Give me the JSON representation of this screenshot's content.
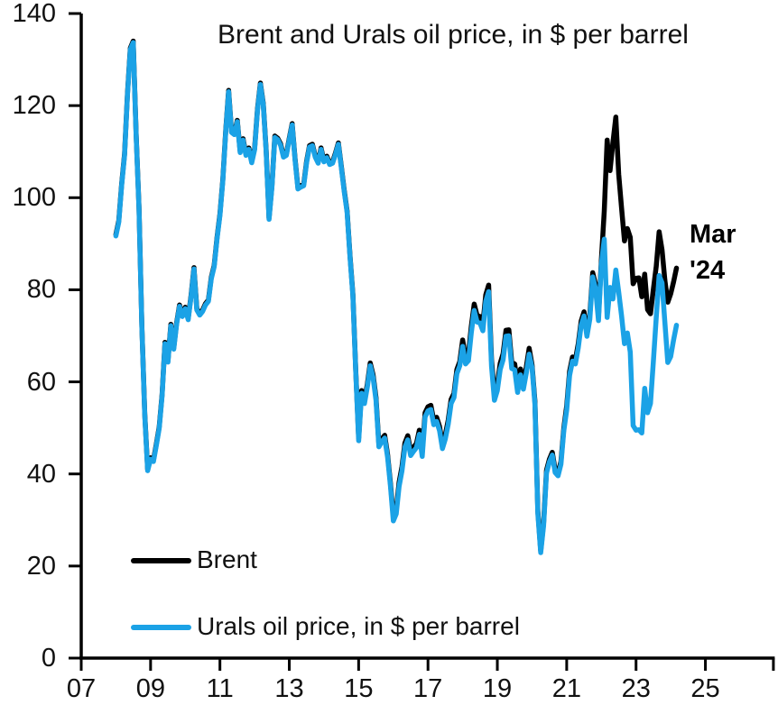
{
  "title": "Brent and Urals oil price, in $ per barrel",
  "annotation": {
    "line1": "Mar",
    "line2": "'24"
  },
  "legend": [
    {
      "label": "Brent",
      "color": "#000000"
    },
    {
      "label": "Urals oil price, in $ per barrel",
      "color": "#1BA2E6"
    }
  ],
  "colors": {
    "brent": "#000000",
    "urals": "#1BA2E6",
    "axis": "#000000",
    "text": "#111111",
    "background": "#ffffff"
  },
  "chart_data": {
    "type": "line",
    "title": "Brent and Urals oil price, in $ per barrel",
    "xlabel": "",
    "ylabel": "",
    "frequency": "monthly",
    "start_year": 2008,
    "end_label": "Mar '24",
    "xlim_years": [
      2007,
      2027
    ],
    "ylim": [
      0,
      140
    ],
    "grid": false,
    "legend_position": "inside-bottom-left",
    "y_ticks": [
      0,
      20,
      40,
      60,
      80,
      100,
      120,
      140
    ],
    "y_tick_labels": [
      "0",
      "20",
      "40",
      "60",
      "80",
      "100",
      "120",
      "140"
    ],
    "x_tick_years": [
      2007,
      2009,
      2011,
      2013,
      2015,
      2017,
      2019,
      2021,
      2023,
      2025
    ],
    "x_tick_labels": [
      "07",
      "09",
      "11",
      "13",
      "15",
      "17",
      "19",
      "21",
      "23",
      "25"
    ],
    "series": [
      {
        "name": "Brent",
        "color": "#000000",
        "values": [
          92,
          95,
          103,
          109.5,
          122.5,
          132.5,
          134,
          114,
          98,
          72,
          53,
          41,
          43.5,
          43,
          46.5,
          50.2,
          57.3,
          68.6,
          64.6,
          72.5,
          67.4,
          72.8,
          76.7,
          74.5,
          76.2,
          73.8,
          78.8,
          84.8,
          75.9,
          74.8,
          75.6,
          77,
          77.8,
          82.7,
          85.3,
          91.4,
          96.5,
          104,
          114.6,
          123.3,
          114.5,
          114,
          116.8,
          110.1,
          112.8,
          109.5,
          110.8,
          107.9,
          110.7,
          119.3,
          124.9,
          120.5,
          110.3,
          95.6,
          102.6,
          113.4,
          112.9,
          111.7,
          109.1,
          109.5,
          112.9,
          116.1,
          108.5,
          102.2,
          102.6,
          102.9,
          107.9,
          111.3,
          111.6,
          109.1,
          107.8,
          110.8,
          108.1,
          109,
          107.5,
          107.8,
          109.7,
          111.9,
          106.8,
          101.6,
          97.1,
          87.4,
          79,
          62.3,
          47.8,
          58.1,
          55.9,
          59.5,
          64.1,
          61.5,
          56.6,
          46.5,
          47.6,
          48.4,
          44.3,
          38,
          30.7,
          32.2,
          38.2,
          41.6,
          46.7,
          48.3,
          44.9,
          45.8,
          46.6,
          49.5,
          44.7,
          53.3,
          54.6,
          54.9,
          51.6,
          52.3,
          50.3,
          46.4,
          48.5,
          51.7,
          56.2,
          57.5,
          62.7,
          64.4,
          69.1,
          65.3,
          66,
          72.1,
          76.9,
          74.4,
          74.2,
          72.5,
          78.9,
          81,
          64.8,
          57.4,
          59.4,
          64,
          66.1,
          71.2,
          71.3,
          64.2,
          63.9,
          59,
          62.8,
          59.7,
          63.2,
          67.3,
          63.7,
          55.7,
          32,
          23.3,
          29.4,
          40.8,
          43.2,
          44.7,
          40.9,
          40.2,
          42.7,
          50,
          54.8,
          62.3,
          65.4,
          64.8,
          68.3,
          73.2,
          75.2,
          70.8,
          74.5,
          83.7,
          81.1,
          74.2,
          86.5,
          97.1,
          112.5,
          105.9,
          112,
          117.5,
          105.1,
          97.7,
          90.6,
          93.3,
          91.4,
          81.3,
          82.5,
          82.6,
          78.5,
          83.4,
          75.7,
          74.8,
          80.1,
          85.1,
          92.6,
          88.7,
          82,
          77.3,
          79.1,
          81.7,
          84.7
        ]
      },
      {
        "name": "Urals oil price, in $ per barrel",
        "color": "#1BA2E6",
        "values": [
          91.7,
          94.7,
          102.7,
          109.2,
          122.2,
          132.2,
          133.7,
          113.7,
          97.7,
          71.7,
          52.7,
          40.7,
          43.2,
          42.7,
          46.2,
          49.9,
          57,
          68.3,
          64.3,
          72.2,
          67.1,
          72.5,
          76.4,
          74.2,
          75.9,
          73.5,
          78.5,
          84.5,
          75.6,
          74.5,
          75.3,
          76.7,
          77.5,
          82.4,
          85,
          91.1,
          96.2,
          103.7,
          114.3,
          123,
          114.2,
          113.7,
          116.5,
          109.8,
          112.5,
          109.2,
          110.5,
          107.6,
          110.4,
          119,
          124.6,
          120.2,
          110,
          95.3,
          102.3,
          113.1,
          112.6,
          111.4,
          108.8,
          109.2,
          112.6,
          115.8,
          108.2,
          101.9,
          102.3,
          102.6,
          107.6,
          111,
          111.3,
          108.8,
          107.5,
          110.5,
          107.8,
          108.7,
          107.2,
          107.5,
          109.4,
          111.6,
          106.5,
          101.3,
          96.8,
          87.1,
          78.7,
          62,
          47.2,
          57.5,
          55.3,
          58.9,
          63.5,
          60.9,
          56,
          45.9,
          47,
          47.8,
          43.7,
          37.4,
          29.8,
          31.3,
          37.3,
          40.7,
          45.8,
          47.4,
          44,
          44.9,
          45.7,
          48.6,
          43.8,
          52.4,
          53.7,
          54,
          50.7,
          51.4,
          49.4,
          45.5,
          47.6,
          50.8,
          55.3,
          56.6,
          61.8,
          63.5,
          67.7,
          63.9,
          64.6,
          70.7,
          75.5,
          73,
          72.8,
          71.1,
          77.5,
          79.6,
          63.4,
          56,
          58.1,
          62.7,
          64.8,
          69.9,
          70,
          62.9,
          62.6,
          57.7,
          61.5,
          58.4,
          61.9,
          66,
          63.1,
          55.1,
          31.4,
          22.9,
          28.8,
          40.2,
          42.6,
          44.1,
          40.3,
          39.6,
          42.1,
          49.4,
          53.9,
          61.4,
          64.5,
          63.9,
          67.4,
          72.3,
          74.3,
          69.9,
          73.6,
          82.8,
          80.2,
          73.3,
          85.6,
          91,
          74,
          80.5,
          78,
          84.3,
          79.5,
          74.3,
          68.3,
          70.6,
          66.5,
          50.5,
          49.5,
          49.6,
          48.9,
          58.6,
          53.3,
          55.3,
          64.4,
          74,
          83.1,
          81.5,
          72.8,
          64.2,
          65.5,
          69.1,
          72.3
        ]
      }
    ]
  }
}
